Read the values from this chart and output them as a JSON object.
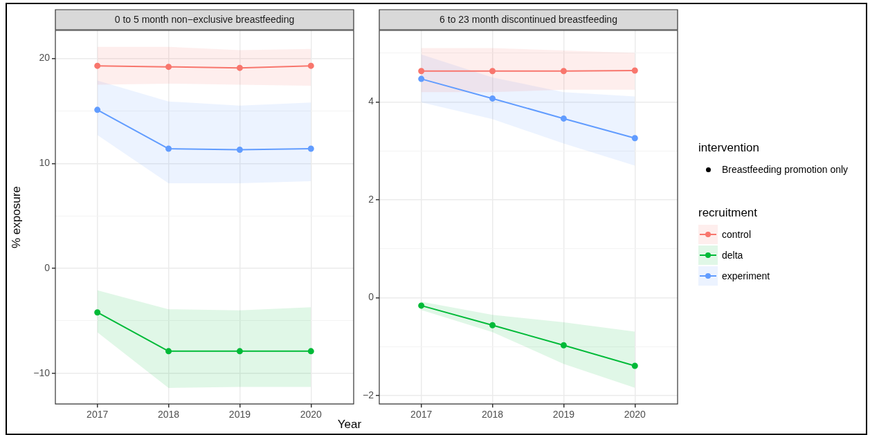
{
  "chart_data": [
    {
      "type": "line",
      "title": "0 to 5 month non−exclusive breastfeeding",
      "xlabel": "Year",
      "ylabel": "% exposure",
      "legend_title": "recruitment",
      "legend": "right",
      "annotations": [
        "intervention",
        "Breastfeeding promotion only"
      ],
      "x": [
        2017,
        2018,
        2019,
        2020
      ],
      "xlim": [
        2016.41,
        2020.6
      ],
      "xticks": [
        2017,
        2018,
        2019,
        2020
      ],
      "ylim": [
        -12.93,
        22.67
      ],
      "yticks": [
        {
          "value": -10,
          "label": "−10"
        },
        {
          "value": -5,
          "label": null
        },
        0,
        {
          "value": 5,
          "label": null
        },
        10,
        {
          "value": 15,
          "label": null
        },
        20
      ],
      "grid": true,
      "marker": "circle",
      "series": [
        {
          "name": "control",
          "color": "#f8766d",
          "values": [
            19.3,
            19.2,
            19.1,
            19.3
          ],
          "lower": [
            17.5,
            17.6,
            17.5,
            17.4
          ],
          "upper": [
            21.1,
            21.1,
            20.8,
            20.9
          ]
        },
        {
          "name": "delta",
          "color": "#00ba38",
          "values": [
            -4.2,
            -7.9,
            -7.9,
            -7.9
          ],
          "lower": [
            -6.1,
            -11.4,
            -11.3,
            -11.3
          ],
          "upper": [
            -2.1,
            -3.9,
            -4.0,
            -3.7
          ]
        },
        {
          "name": "experiment",
          "color": "#619cff",
          "values": [
            15.1,
            11.4,
            11.3,
            11.4
          ],
          "lower": [
            12.7,
            8.1,
            8.1,
            8.3
          ],
          "upper": [
            17.9,
            15.9,
            15.5,
            15.8
          ]
        }
      ]
    },
    {
      "type": "line",
      "title": "6 to 23 month discontinued breastfeeding",
      "x": [
        2017,
        2018,
        2019,
        2020
      ],
      "xlim": [
        2016.41,
        2020.6
      ],
      "xticks": [
        2017,
        2018,
        2019,
        2020
      ],
      "ylim": [
        -2.17,
        5.46
      ],
      "yticks": [
        {
          "value": -2,
          "label": "−2"
        },
        {
          "value": -1,
          "label": null
        },
        0,
        {
          "value": 1,
          "label": null
        },
        2,
        {
          "value": 3,
          "label": null
        },
        4,
        {
          "value": 5,
          "label": null
        }
      ],
      "grid": true,
      "marker": "circle",
      "series": [
        {
          "color": "#f8766d",
          "values": [
            4.63,
            4.63,
            4.63,
            4.64
          ],
          "lower": [
            4.2,
            4.2,
            4.25,
            4.25
          ],
          "upper": [
            5.1,
            5.1,
            5.05,
            5.0
          ]
        },
        {
          "color": "#00ba38",
          "values": [
            -0.16,
            -0.56,
            -0.97,
            -1.39
          ],
          "lower": [
            -0.25,
            -0.7,
            -1.35,
            -1.84
          ],
          "upper": [
            -0.08,
            -0.35,
            -0.5,
            -0.69
          ]
        },
        {
          "color": "#619cff",
          "values": [
            4.47,
            4.07,
            3.66,
            3.26
          ],
          "lower": [
            3.99,
            3.65,
            3.15,
            2.7
          ],
          "upper": [
            4.97,
            4.5,
            4.2,
            4.11
          ]
        }
      ]
    }
  ]
}
